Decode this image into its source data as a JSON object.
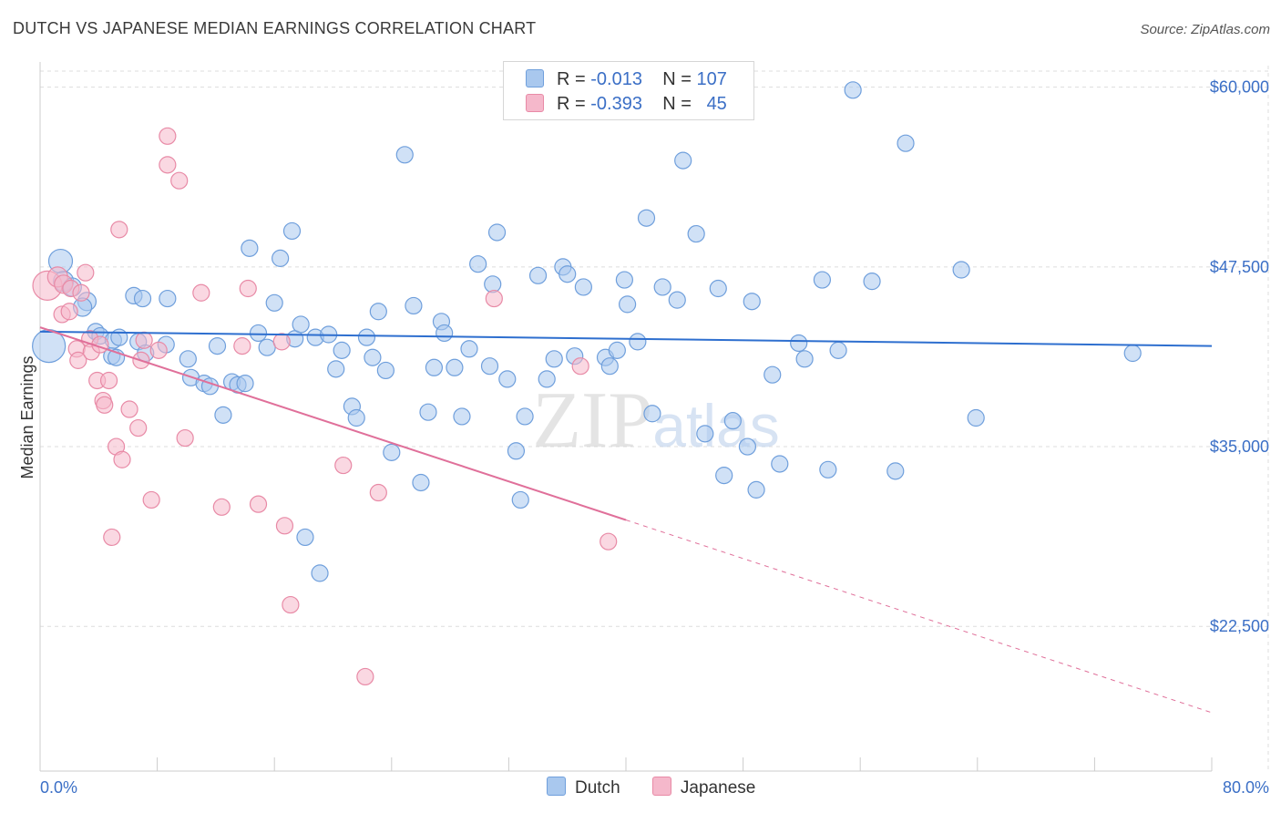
{
  "title": "DUTCH VS JAPANESE MEDIAN EARNINGS CORRELATION CHART",
  "source": "Source: ZipAtlas.com",
  "legend": {
    "rows": [
      {
        "r_label": "R =",
        "r_value": "-0.013",
        "n_label": "N =",
        "n_value": "107"
      },
      {
        "r_label": "R =",
        "r_value": "-0.393",
        "n_label": "N =",
        "n_value": "45"
      }
    ]
  },
  "bottom_legend": [
    "Dutch",
    "Japanese"
  ],
  "colors": {
    "dutch_fill": "#a9c8ee",
    "dutch_stroke": "#6f9fdc",
    "dutch_line": "#2e6fcf",
    "japanese_fill": "#f5b8cb",
    "japanese_stroke": "#e88aa6",
    "japanese_line": "#e0709a",
    "grid": "#dddddd",
    "axis_text": "#3b6fc6"
  },
  "chart_data": {
    "type": "scatter",
    "title": "DUTCH VS JAPANESE MEDIAN EARNINGS CORRELATION CHART",
    "xlabel": "",
    "ylabel": "Median Earnings",
    "xlim": [
      0,
      80
    ],
    "ylim": [
      12500,
      61500
    ],
    "x_tick_labels": [
      "0.0%",
      "80.0%"
    ],
    "y_ticks": [
      22500,
      35000,
      47500,
      60000
    ],
    "y_tick_labels": [
      "$22,500",
      "$35,000",
      "$47,500",
      "$60,000"
    ],
    "watermark": "ZIPatlas",
    "series": [
      {
        "name": "Dutch",
        "r": -0.013,
        "n": 107,
        "trend": {
          "x0": 0,
          "y0": 43000,
          "x1": 80,
          "y1": 42000,
          "solid_until": 80
        },
        "points": [
          [
            0.6,
            42000,
            18
          ],
          [
            1.4,
            47900,
            13
          ],
          [
            1.6,
            46500,
            11
          ],
          [
            2.2,
            46100,
            10
          ],
          [
            3.2,
            45100,
            10
          ],
          [
            2.9,
            44700,
            10
          ],
          [
            3.8,
            43000,
            9
          ],
          [
            4.1,
            42700,
            9
          ],
          [
            5.0,
            42400,
            9
          ],
          [
            5.4,
            42600,
            9
          ],
          [
            6.7,
            42300,
            9
          ],
          [
            8.6,
            42100,
            9
          ],
          [
            4.9,
            41300,
            9
          ],
          [
            5.2,
            41200,
            9
          ],
          [
            7.2,
            41500,
            9
          ],
          [
            6.4,
            45500,
            9
          ],
          [
            7.0,
            45300,
            9
          ],
          [
            8.7,
            45300,
            9
          ],
          [
            10.1,
            41100,
            9
          ],
          [
            10.3,
            39800,
            9
          ],
          [
            11.2,
            39400,
            9
          ],
          [
            11.6,
            39200,
            9
          ],
          [
            12.1,
            42000,
            9
          ],
          [
            12.5,
            37200,
            9
          ],
          [
            13.1,
            39500,
            9
          ],
          [
            13.5,
            39300,
            9
          ],
          [
            14.0,
            39400,
            9
          ],
          [
            14.3,
            48800,
            9
          ],
          [
            14.9,
            42900,
            9
          ],
          [
            15.5,
            41900,
            9
          ],
          [
            16.0,
            45000,
            9
          ],
          [
            16.4,
            48100,
            9
          ],
          [
            17.2,
            50000,
            9
          ],
          [
            17.4,
            42500,
            9
          ],
          [
            17.8,
            43500,
            9
          ],
          [
            18.1,
            28700,
            9
          ],
          [
            18.8,
            42600,
            9
          ],
          [
            19.1,
            26200,
            9
          ],
          [
            19.7,
            42800,
            9
          ],
          [
            20.2,
            40400,
            9
          ],
          [
            20.6,
            41700,
            9
          ],
          [
            21.3,
            37800,
            9
          ],
          [
            21.6,
            37000,
            9
          ],
          [
            22.3,
            42600,
            9
          ],
          [
            22.7,
            41200,
            9
          ],
          [
            23.1,
            44400,
            9
          ],
          [
            23.6,
            40300,
            9
          ],
          [
            24.0,
            34600,
            9
          ],
          [
            24.9,
            55300,
            9
          ],
          [
            25.5,
            44800,
            9
          ],
          [
            26.0,
            32500,
            9
          ],
          [
            26.5,
            37400,
            9
          ],
          [
            26.9,
            40500,
            9
          ],
          [
            27.4,
            43700,
            9
          ],
          [
            27.6,
            42900,
            9
          ],
          [
            28.3,
            40500,
            9
          ],
          [
            28.8,
            37100,
            9
          ],
          [
            29.3,
            41800,
            9
          ],
          [
            29.9,
            47700,
            9
          ],
          [
            30.7,
            40600,
            9
          ],
          [
            30.9,
            46300,
            9
          ],
          [
            31.2,
            49900,
            9
          ],
          [
            31.9,
            39700,
            9
          ],
          [
            32.5,
            34700,
            9
          ],
          [
            32.8,
            31300,
            9
          ],
          [
            33.1,
            37100,
            9
          ],
          [
            34.0,
            46900,
            9
          ],
          [
            34.6,
            39700,
            9
          ],
          [
            35.1,
            41100,
            9
          ],
          [
            35.7,
            47500,
            9
          ],
          [
            36.0,
            47000,
            9
          ],
          [
            36.5,
            41300,
            9
          ],
          [
            37.1,
            46100,
            9
          ],
          [
            38.6,
            41200,
            9
          ],
          [
            38.9,
            40600,
            9
          ],
          [
            39.4,
            41700,
            9
          ],
          [
            39.9,
            46600,
            9
          ],
          [
            40.1,
            44900,
            9
          ],
          [
            40.8,
            42300,
            9
          ],
          [
            41.4,
            50900,
            9
          ],
          [
            41.8,
            37300,
            9
          ],
          [
            42.5,
            46100,
            9
          ],
          [
            43.5,
            45200,
            9
          ],
          [
            43.9,
            54900,
            9
          ],
          [
            44.8,
            49800,
            9
          ],
          [
            45.4,
            35900,
            9
          ],
          [
            46.3,
            46000,
            9
          ],
          [
            46.7,
            33000,
            9
          ],
          [
            47.3,
            36800,
            9
          ],
          [
            48.3,
            35000,
            9
          ],
          [
            48.6,
            45100,
            9
          ],
          [
            48.9,
            32000,
            9
          ],
          [
            50.0,
            40000,
            9
          ],
          [
            50.5,
            33800,
            9
          ],
          [
            51.8,
            42200,
            9
          ],
          [
            52.2,
            41100,
            9
          ],
          [
            53.4,
            46600,
            9
          ],
          [
            53.8,
            33400,
            9
          ],
          [
            54.5,
            41700,
            9
          ],
          [
            55.5,
            59800,
            9
          ],
          [
            56.8,
            46500,
            9
          ],
          [
            58.4,
            33300,
            9
          ],
          [
            59.1,
            56100,
            9
          ],
          [
            62.9,
            47300,
            9
          ],
          [
            63.9,
            37000,
            9
          ],
          [
            74.6,
            41500,
            9
          ]
        ]
      },
      {
        "name": "Japanese",
        "r": -0.393,
        "n": 45,
        "trend": {
          "x0": 0,
          "y0": 43300,
          "x1": 80,
          "y1": 16500,
          "solid_until": 40
        },
        "points": [
          [
            0.5,
            46200,
            16
          ],
          [
            1.2,
            46800,
            11
          ],
          [
            1.6,
            46300,
            10
          ],
          [
            2.1,
            46000,
            9
          ],
          [
            3.1,
            47100,
            9
          ],
          [
            1.5,
            44200,
            9
          ],
          [
            2.0,
            44400,
            9
          ],
          [
            2.8,
            45700,
            9
          ],
          [
            2.5,
            41800,
            9
          ],
          [
            3.4,
            42500,
            9
          ],
          [
            2.6,
            41000,
            9
          ],
          [
            3.5,
            41600,
            9
          ],
          [
            3.9,
            39600,
            9
          ],
          [
            4.1,
            42100,
            9
          ],
          [
            4.3,
            38200,
            9
          ],
          [
            4.4,
            37900,
            9
          ],
          [
            4.7,
            39600,
            9
          ],
          [
            4.9,
            28700,
            9
          ],
          [
            5.2,
            35000,
            9
          ],
          [
            5.4,
            50100,
            9
          ],
          [
            5.6,
            34100,
            9
          ],
          [
            6.1,
            37600,
            9
          ],
          [
            6.7,
            36300,
            9
          ],
          [
            6.9,
            41000,
            9
          ],
          [
            7.1,
            42400,
            9
          ],
          [
            7.6,
            31300,
            9
          ],
          [
            8.1,
            41700,
            9
          ],
          [
            8.7,
            56600,
            9
          ],
          [
            8.7,
            54600,
            9
          ],
          [
            9.5,
            53500,
            9
          ],
          [
            9.9,
            35600,
            9
          ],
          [
            11.0,
            45700,
            9
          ],
          [
            12.4,
            30800,
            9
          ],
          [
            13.8,
            42000,
            9
          ],
          [
            14.2,
            46000,
            9
          ],
          [
            14.9,
            31000,
            9
          ],
          [
            16.5,
            42300,
            9
          ],
          [
            16.7,
            29500,
            9
          ],
          [
            17.1,
            24000,
            9
          ],
          [
            20.7,
            33700,
            9
          ],
          [
            22.2,
            19000,
            9
          ],
          [
            23.1,
            31800,
            9
          ],
          [
            31.0,
            45300,
            9
          ],
          [
            36.9,
            40600,
            9
          ],
          [
            38.8,
            28400,
            9
          ]
        ]
      }
    ]
  }
}
